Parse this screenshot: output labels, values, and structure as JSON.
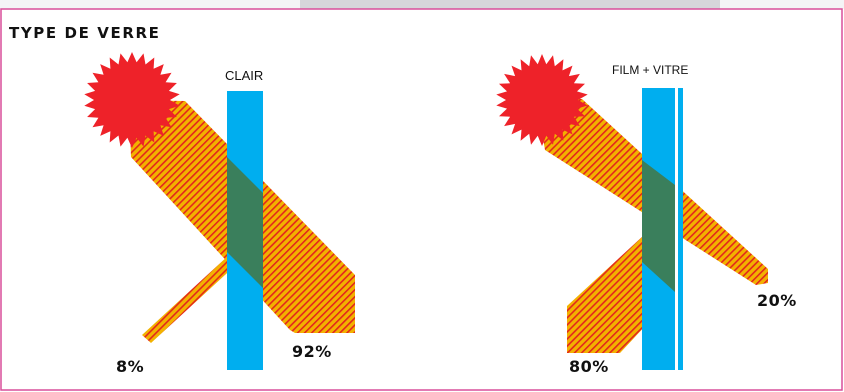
{
  "title": "TYPE DE VERRE",
  "colors": {
    "frame": "#d94f9a",
    "sun": "#ee2229",
    "ray_stripe": "#f2b200",
    "ray_stripe_alt": "#e3261c",
    "glass": "#00aeef",
    "overlap": "#3a7f5c",
    "text": "#111111"
  },
  "panels": [
    {
      "glass_label": "CLAIR",
      "reflected_pct": "8%",
      "transmitted_pct": "92%"
    },
    {
      "glass_label": "FILM + VITRE",
      "reflected_pct": "80%",
      "transmitted_pct": "20%"
    }
  ]
}
